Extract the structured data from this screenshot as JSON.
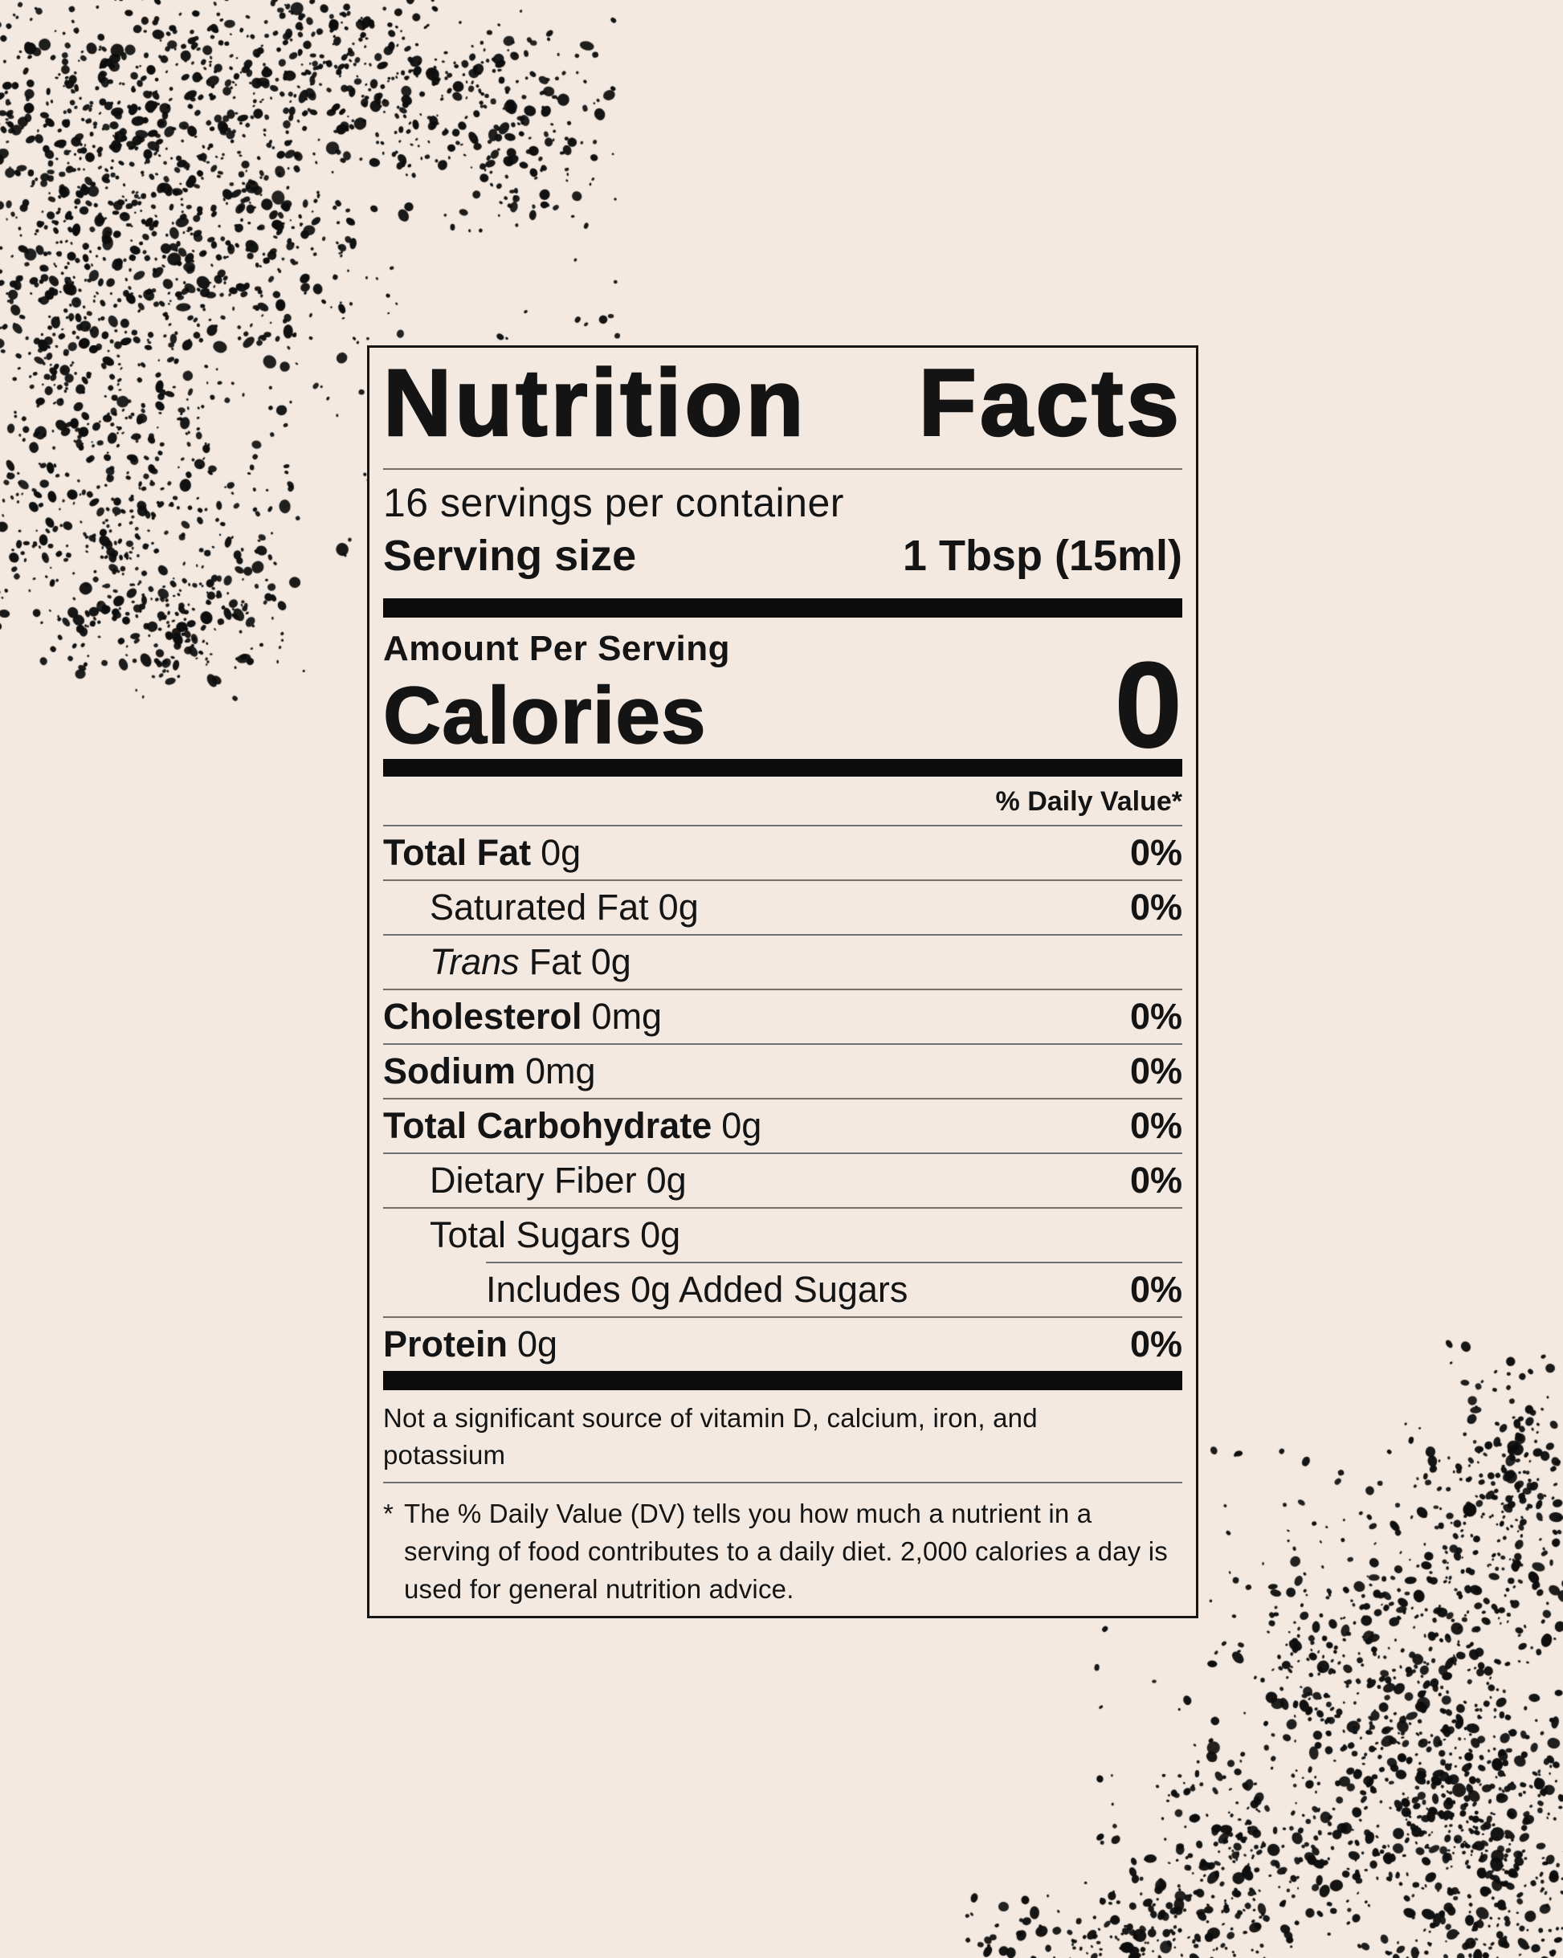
{
  "label": {
    "title_word1": "Nutrition",
    "title_word2": "Facts",
    "servings_per_container": "16 servings per container",
    "serving_size_label": "Serving size",
    "serving_size_value": "1 Tbsp (15ml)",
    "amount_per_serving": "Amount Per Serving",
    "calories_label": "Calories",
    "calories_value": "0",
    "daily_value_header": "% Daily Value*",
    "rows": [
      {
        "name": "Total Fat",
        "amount": "0g",
        "dv": "0%"
      },
      {
        "name": "Saturated Fat",
        "amount": "0g",
        "dv": "0%"
      },
      {
        "name_prefix": "Trans",
        "name": "Fat",
        "amount": "0g",
        "dv": ""
      },
      {
        "name": "Cholesterol",
        "amount": "0mg",
        "dv": "0%"
      },
      {
        "name": "Sodium",
        "amount": "0mg",
        "dv": "0%"
      },
      {
        "name": "Total Carbohydrate",
        "amount": "0g",
        "dv": "0%"
      },
      {
        "name": "Dietary Fiber",
        "amount": "0g",
        "dv": "0%"
      },
      {
        "name": "Total Sugars",
        "amount": "0g",
        "dv": ""
      },
      {
        "name": "Includes 0g Added Sugars",
        "amount": "",
        "dv": "0%"
      },
      {
        "name": "Protein",
        "amount": "0g",
        "dv": "0%"
      }
    ],
    "footnote_significant": "Not a significant source of vitamin D, calcium, iron, and potassium",
    "footnote_marker": "*",
    "footnote_daily_value": "The % Daily Value (DV) tells you how much a nutrient in a serving of food contributes to a daily diet. 2,000 calories a day is used for general nutrition advice."
  },
  "colors": {
    "background": "#f3e9e1",
    "ink": "#141414",
    "speckle": "#0d0d0d",
    "hairline": "#6f6f6f"
  }
}
